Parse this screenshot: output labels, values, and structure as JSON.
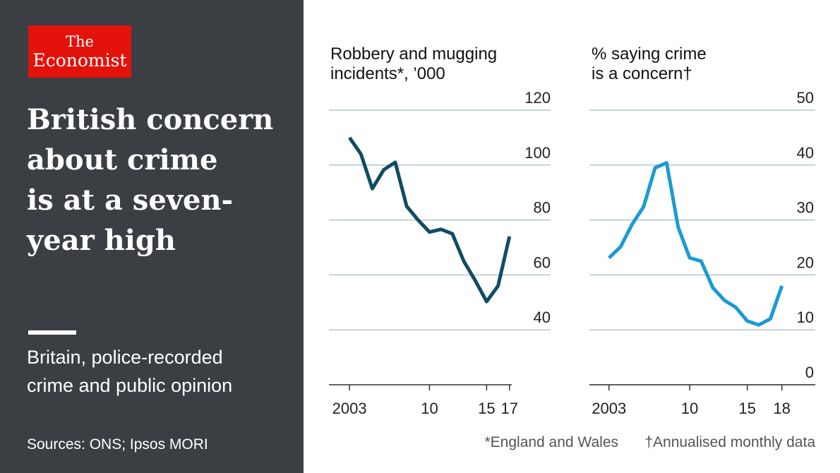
{
  "header": {
    "logo": [
      "The",
      "Economist"
    ],
    "headline": [
      "British concern",
      "about crime",
      "is at a seven-",
      "year high"
    ],
    "subtitle": [
      "Britain, police-recorded",
      "crime and public opinion"
    ],
    "source": "Sources: ONS; Ipsos MORI"
  },
  "chart_data": [
    {
      "type": "line",
      "title": [
        "Robbery and mugging",
        "incidents*, ’000"
      ],
      "x": [
        2003,
        2004,
        2005,
        2006,
        2007,
        2008,
        2009,
        2010,
        2011,
        2012,
        2013,
        2014,
        2015,
        2016,
        2017
      ],
      "series": [
        {
          "color": "#0f4c64",
          "values": [
            110,
            104,
            91.4,
            98.3,
            101,
            85,
            80,
            75.6,
            76.6,
            75,
            65,
            58,
            50.3,
            56,
            74
          ]
        }
      ],
      "xlim": [
        2001.2,
        2017.2
      ],
      "xticks": [
        2003,
        {
          "value": 2010,
          "label": "10"
        },
        {
          "value": 2015,
          "label": "15"
        },
        {
          "value": 2017,
          "label": "17"
        }
      ],
      "ylim": [
        20,
        120
      ],
      "yticks": [
        40,
        60,
        80,
        100,
        120
      ],
      "grid": true
    },
    {
      "type": "line",
      "title": [
        "% saying crime",
        "is a concern†"
      ],
      "x": [
        2003,
        2004,
        2005,
        2006,
        2007,
        2008,
        2009,
        2010,
        2011,
        2012,
        2013,
        2014,
        2015,
        2016,
        2017,
        2018
      ],
      "series": [
        {
          "color": "#1a9bd3",
          "values": [
            23.1,
            25.1,
            29.2,
            32.4,
            39.5,
            40.4,
            28.7,
            23.1,
            22.5,
            17.7,
            15.4,
            14.1,
            11.6,
            10.9,
            12,
            18
          ]
        }
      ],
      "xlim": [
        2001.3,
        2020.9
      ],
      "xticks": [
        2003,
        {
          "value": 2010,
          "label": "10"
        },
        {
          "value": 2015,
          "label": "15"
        },
        {
          "value": 2018,
          "label": "18"
        }
      ],
      "ylim": [
        0,
        50
      ],
      "yticks": [
        0,
        10,
        20,
        30,
        40,
        50
      ],
      "grid": true
    }
  ],
  "footnotes": [
    "*England and Wales",
    "†Annualised monthly data"
  ]
}
